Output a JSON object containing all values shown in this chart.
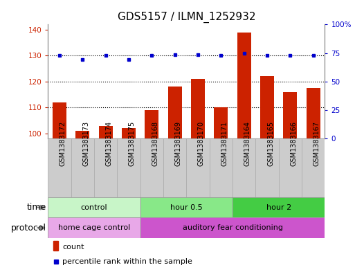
{
  "title": "GDS5157 / ILMN_1252932",
  "samples": [
    "GSM1383172",
    "GSM1383173",
    "GSM1383174",
    "GSM1383175",
    "GSM1383168",
    "GSM1383169",
    "GSM1383170",
    "GSM1383171",
    "GSM1383164",
    "GSM1383165",
    "GSM1383166",
    "GSM1383167"
  ],
  "counts": [
    112,
    101,
    103,
    102,
    109,
    118,
    121,
    110,
    139,
    122,
    116,
    117.5
  ],
  "percentiles": [
    130,
    128.5,
    130,
    128.5,
    130,
    130.5,
    130.5,
    130,
    131,
    130,
    130,
    130
  ],
  "ylim_left": [
    98,
    142
  ],
  "ylim_right": [
    0,
    100
  ],
  "yticks_left": [
    100,
    110,
    120,
    130,
    140
  ],
  "yticks_right": [
    0,
    25,
    50,
    75,
    100
  ],
  "ytick_labels_right": [
    "0",
    "25",
    "50",
    "75",
    "100%"
  ],
  "groups": [
    {
      "label": "control",
      "start": 0,
      "end": 4,
      "color": "#c8f5c8"
    },
    {
      "label": "hour 0.5",
      "start": 4,
      "end": 8,
      "color": "#88e888"
    },
    {
      "label": "hour 2",
      "start": 8,
      "end": 12,
      "color": "#44cc44"
    }
  ],
  "protocols": [
    {
      "label": "home cage control",
      "start": 0,
      "end": 4,
      "color": "#e8a8e8"
    },
    {
      "label": "auditory fear conditioning",
      "start": 4,
      "end": 12,
      "color": "#cc55cc"
    }
  ],
  "bar_color": "#cc2200",
  "dot_color": "#0000cc",
  "bg_color": "#ffffff",
  "plot_bg": "#ffffff",
  "sample_bg": "#cccccc",
  "time_label": "time",
  "protocol_label": "protocol",
  "legend_count": "count",
  "legend_percentile": "percentile rank within the sample",
  "title_fontsize": 11,
  "tick_fontsize": 7.5,
  "label_fontsize": 9,
  "sample_fontsize": 7
}
